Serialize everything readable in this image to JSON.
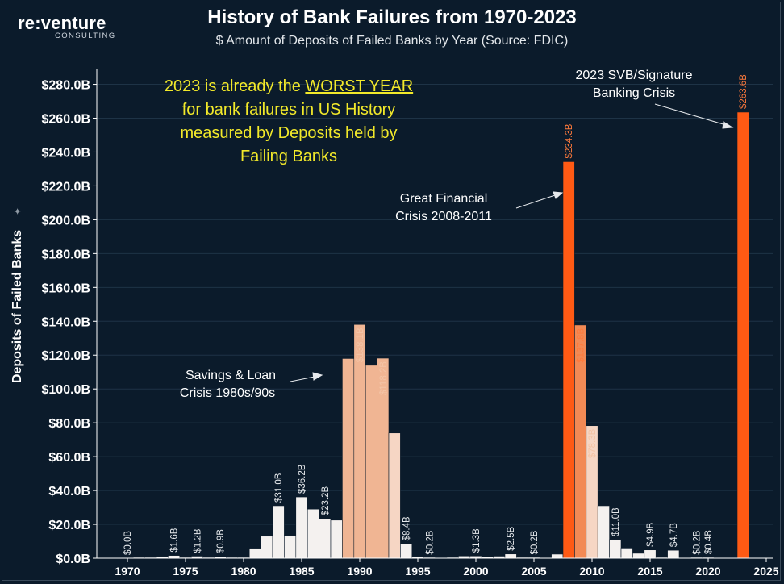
{
  "header": {
    "logo_main": "re:venture",
    "logo_sub": "CONSULTING",
    "title": "History of Bank Failures from 1970-2023",
    "subtitle": "$ Amount of Deposits of Failed Banks by Year (Source: FDIC)"
  },
  "colors": {
    "background": "#0b1b2b",
    "bar_light": "#f4f1ef",
    "bar_peach_light": "#f6d6c4",
    "bar_peach": "#f0b593",
    "bar_orange_mid": "#f28a55",
    "bar_orange": "#ff5a14",
    "callout_text": "#f2e92a",
    "label_orange": "#ff7a3c"
  },
  "annotations": {
    "callout_line1": "2023 is already the ",
    "callout_underlined": "WORST YEAR",
    "callout_line2": "for bank failures in US History",
    "callout_line3": "measured by Deposits held by",
    "callout_line4": "Failing Banks",
    "svb_line1": "2023 SVB/Signature",
    "svb_line2": "Banking Crisis",
    "gfc_line1": "Great Financial",
    "gfc_line2": "Crisis 2008-2011",
    "sl_line1": "Savings & Loan",
    "sl_line2": "Crisis 1980s/90s"
  },
  "chart_data": {
    "type": "bar",
    "title": "History of Bank Failures from 1970-2023",
    "subtitle": "$ Amount of Deposits of Failed Banks by Year (Source: FDIC)",
    "xlabel": "",
    "ylabel": "Deposits of Failed Banks",
    "ylim": [
      0,
      290
    ],
    "y_unit": "$B",
    "y_ticks": [
      "$0.0B",
      "$20.0B",
      "$40.0B",
      "$60.0B",
      "$80.0B",
      "$100.0B",
      "$120.0B",
      "$140.0B",
      "$160.0B",
      "$180.0B",
      "$200.0B",
      "$220.0B",
      "$240.0B",
      "$260.0B",
      "$280.0B"
    ],
    "x_ticks": [
      "1970",
      "1975",
      "1980",
      "1985",
      "1990",
      "1995",
      "2000",
      "2005",
      "2010",
      "2015",
      "2020",
      "2025"
    ],
    "grid": true,
    "points": [
      {
        "x": 1970,
        "y": 0.0,
        "label": "$0.0B"
      },
      {
        "x": 1971,
        "y": 0.1
      },
      {
        "x": 1972,
        "y": 0.1
      },
      {
        "x": 1973,
        "y": 1.0
      },
      {
        "x": 1974,
        "y": 1.6,
        "label": "$1.6B"
      },
      {
        "x": 1975,
        "y": 0.4
      },
      {
        "x": 1976,
        "y": 1.2,
        "label": "$1.2B"
      },
      {
        "x": 1977,
        "y": 0.2
      },
      {
        "x": 1978,
        "y": 0.9,
        "label": "$0.9B"
      },
      {
        "x": 1979,
        "y": 0.1
      },
      {
        "x": 1980,
        "y": 0.2
      },
      {
        "x": 1981,
        "y": 5.9
      },
      {
        "x": 1982,
        "y": 13.0
      },
      {
        "x": 1983,
        "y": 31.0,
        "label": "$31.0B"
      },
      {
        "x": 1984,
        "y": 13.5
      },
      {
        "x": 1985,
        "y": 36.2,
        "label": "$36.2B"
      },
      {
        "x": 1986,
        "y": 29.0
      },
      {
        "x": 1987,
        "y": 23.2,
        "label": "$23.2B"
      },
      {
        "x": 1988,
        "y": 22.5
      },
      {
        "x": 1989,
        "y": 118.0
      },
      {
        "x": 1990,
        "y": 138.1,
        "label": "$138.1B"
      },
      {
        "x": 1991,
        "y": 114.0
      },
      {
        "x": 1992,
        "y": 118.2,
        "label": "$118.2B"
      },
      {
        "x": 1993,
        "y": 74.0
      },
      {
        "x": 1994,
        "y": 8.4,
        "label": "$8.4B"
      },
      {
        "x": 1995,
        "y": 1.0
      },
      {
        "x": 1996,
        "y": 0.2,
        "label": "$0.2B"
      },
      {
        "x": 1997,
        "y": 0.0
      },
      {
        "x": 1998,
        "y": 0.3
      },
      {
        "x": 1999,
        "y": 1.3
      },
      {
        "x": 2000,
        "y": 1.3,
        "label": "$1.3B"
      },
      {
        "x": 2001,
        "y": 1.1
      },
      {
        "x": 2002,
        "y": 1.2
      },
      {
        "x": 2003,
        "y": 2.5,
        "label": "$2.5B"
      },
      {
        "x": 2004,
        "y": 0.2
      },
      {
        "x": 2005,
        "y": 0.2,
        "label": "$0.2B"
      },
      {
        "x": 2006,
        "y": 0.0
      },
      {
        "x": 2007,
        "y": 2.4
      },
      {
        "x": 2008,
        "y": 234.3,
        "label": "$234.3B"
      },
      {
        "x": 2009,
        "y": 137.8,
        "label": "$137.8B"
      },
      {
        "x": 2010,
        "y": 78.3,
        "label": "$78.3B"
      },
      {
        "x": 2011,
        "y": 31.0
      },
      {
        "x": 2012,
        "y": 11.0,
        "label": "$11.0B"
      },
      {
        "x": 2013,
        "y": 6.0
      },
      {
        "x": 2014,
        "y": 2.9
      },
      {
        "x": 2015,
        "y": 4.9,
        "label": "$4.9B"
      },
      {
        "x": 2016,
        "y": 0.3
      },
      {
        "x": 2017,
        "y": 4.7,
        "label": "$4.7B"
      },
      {
        "x": 2018,
        "y": 0.0
      },
      {
        "x": 2019,
        "y": 0.2,
        "label": "$0.2B"
      },
      {
        "x": 2020,
        "y": 0.4,
        "label": "$0.4B"
      },
      {
        "x": 2021,
        "y": 0.0
      },
      {
        "x": 2022,
        "y": 0.0
      },
      {
        "x": 2023,
        "y": 263.6,
        "label": "$263.6B"
      }
    ]
  }
}
